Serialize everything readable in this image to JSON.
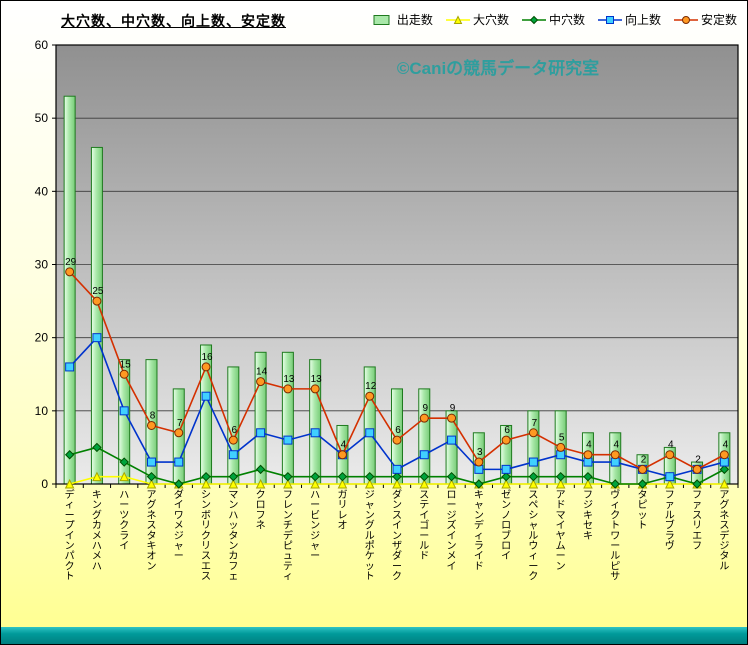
{
  "title_note": "combo chart of sire statistics",
  "watermark": "©Caniの競馬データ研究室",
  "colors": {
    "watermark": "#2f9e9e",
    "page_bg_top": "#ffffff",
    "page_bg_bottom": "#ffff8e",
    "bottom_strip": "#009a9a",
    "grid": "#3a3a3a",
    "axis": "#000000"
  },
  "chart_data": {
    "type": "combo (bar + line)",
    "title": "大穴数、中穴数、向上数、安定数",
    "xlabel": "",
    "ylabel": "",
    "ylim": [
      0,
      60
    ],
    "yticks": [
      0,
      10,
      20,
      30,
      40,
      50,
      60
    ],
    "grid": true,
    "legend_position": "top-right",
    "plot_bg": [
      "#909090",
      "#ebebeb"
    ],
    "categories": [
      "ディープインパクト",
      "キングカメハメハ",
      "ハーツクライ",
      "アグネスタキオン",
      "ダイワメジャー",
      "シンボリクリスエス",
      "マンハッタンカフェ",
      "クロフネ",
      "フレンチデピュティ",
      "ハービンジャー",
      "ガリレオ",
      "ジャングルポケット",
      "ダンスインザダーク",
      "ステイゴールド",
      "ロージズインメイ",
      "キャンディライド",
      "ゼンノロブロイ",
      "スペシャルウィーク",
      "アドマイヤムーン",
      "フジキセキ",
      "ヴィクトワールピサ",
      "タピット",
      "ファルブラヴ",
      "ファスリエフ",
      "アグネスデジタル"
    ],
    "series": [
      {
        "name": "出走数",
        "type": "bar",
        "color": "#a9e8a9",
        "border": "#1f7a1f",
        "values": [
          53,
          46,
          17,
          17,
          13,
          19,
          16,
          18,
          18,
          17,
          8,
          16,
          13,
          13,
          10,
          7,
          8,
          10,
          10,
          7,
          7,
          4,
          5,
          3,
          7
        ]
      },
      {
        "name": "大穴数",
        "type": "line",
        "marker": "triangle",
        "color": "#ffff00",
        "marker_fill": "#ffff00",
        "marker_edge": "#a6a600",
        "values": [
          0,
          1,
          1,
          0,
          0,
          0,
          0,
          0,
          0,
          0,
          0,
          0,
          0,
          0,
          0,
          0,
          0,
          0,
          0,
          0,
          0,
          0,
          0,
          0,
          0
        ]
      },
      {
        "name": "中穴数",
        "type": "line",
        "marker": "diamond",
        "color": "#008000",
        "marker_fill": "#00a33c",
        "marker_edge": "#004d00",
        "values": [
          4,
          5,
          3,
          1,
          0,
          1,
          1,
          2,
          1,
          1,
          1,
          1,
          1,
          1,
          1,
          0,
          1,
          1,
          1,
          1,
          0,
          0,
          1,
          0,
          2
        ]
      },
      {
        "name": "向上数",
        "type": "line",
        "marker": "square",
        "color": "#0033cc",
        "marker_fill": "#40d0ff",
        "marker_edge": "#0033cc",
        "values": [
          16,
          20,
          10,
          3,
          3,
          12,
          4,
          7,
          6,
          7,
          4,
          7,
          2,
          4,
          6,
          2,
          2,
          3,
          4,
          3,
          3,
          2,
          1,
          2,
          3
        ]
      },
      {
        "name": "安定数",
        "type": "line",
        "marker": "circle",
        "show_labels": true,
        "color": "#d43000",
        "marker_fill": "#ff9922",
        "marker_edge": "#7a2900",
        "values": [
          29,
          25,
          15,
          8,
          7,
          16,
          6,
          14,
          13,
          13,
          4,
          12,
          6,
          9,
          9,
          3,
          6,
          7,
          5,
          4,
          4,
          2,
          4,
          2,
          4
        ]
      }
    ]
  }
}
